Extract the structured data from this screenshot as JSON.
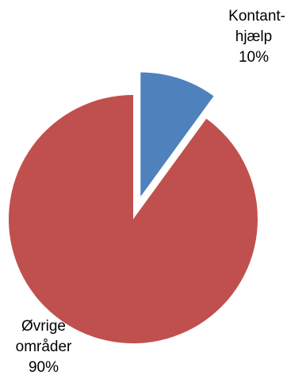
{
  "chart_data": {
    "type": "pie",
    "exploded": true,
    "start_angle_deg": 0,
    "direction": "clockwise",
    "slices": [
      {
        "label_lines": [
          "Kontant-",
          "hjælp"
        ],
        "value": 10,
        "percent_label": "10%",
        "color": "#4F81BD"
      },
      {
        "label_lines": [
          "Øvrige",
          "områder"
        ],
        "value": 90,
        "percent_label": "90%",
        "color": "#C0504D"
      }
    ]
  }
}
